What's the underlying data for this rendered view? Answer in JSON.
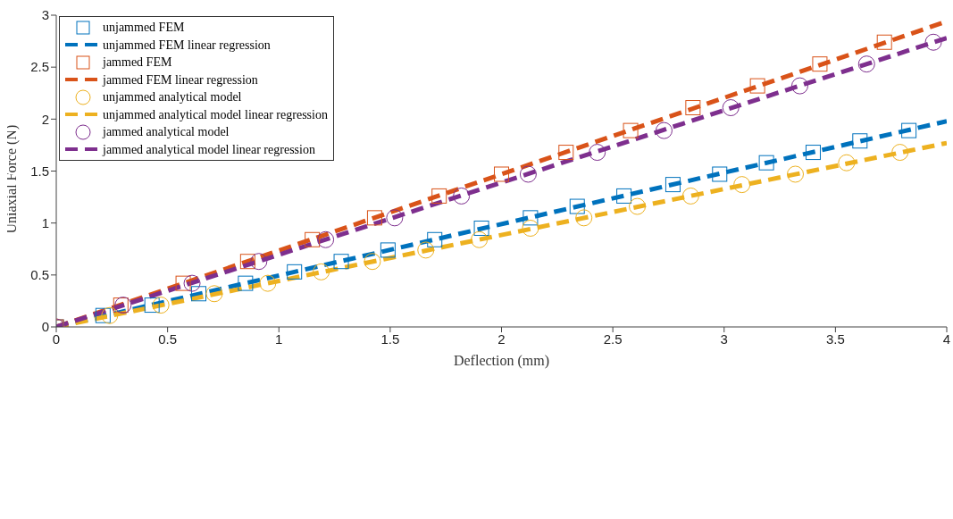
{
  "chart_data": {
    "type": "scatter",
    "xlabel": "Deflection (mm)",
    "ylabel": "Uniaxial Force (N)",
    "xlim": [
      0,
      4
    ],
    "ylim": [
      0,
      3
    ],
    "xticks": [
      0,
      0.5,
      1,
      1.5,
      2,
      2.5,
      3,
      3.5,
      4
    ],
    "yticks": [
      0,
      0.5,
      1,
      1.5,
      2,
      2.5,
      3
    ],
    "grid": false,
    "legend": "top left",
    "series": [
      {
        "name": "unjammed FEM",
        "type": "scatter",
        "marker": "square",
        "color": "#0072bd",
        "x": [
          0,
          0.21,
          0.43,
          0.64,
          0.85,
          1.07,
          1.28,
          1.49,
          1.7,
          1.91,
          2.13,
          2.34,
          2.55,
          2.77,
          2.98,
          3.19,
          3.4,
          3.61,
          3.83
        ],
        "values": [
          0,
          0.11,
          0.21,
          0.32,
          0.42,
          0.53,
          0.63,
          0.74,
          0.84,
          0.95,
          1.05,
          1.16,
          1.26,
          1.37,
          1.47,
          1.58,
          1.68,
          1.79,
          1.89
        ]
      },
      {
        "name": "unjammed FEM linear regression",
        "type": "line",
        "line_style": "dashed",
        "color": "#0072bd",
        "x": [
          0,
          4
        ],
        "values": [
          0,
          1.98
        ]
      },
      {
        "name": "jammed FEM",
        "type": "scatter",
        "marker": "square",
        "color": "#d95319",
        "x": [
          0,
          0.29,
          0.57,
          0.86,
          1.15,
          1.43,
          1.72,
          2.0,
          2.29,
          2.58,
          2.86,
          3.15,
          3.43,
          3.72
        ],
        "values": [
          0,
          0.21,
          0.42,
          0.63,
          0.84,
          1.05,
          1.26,
          1.47,
          1.68,
          1.89,
          2.11,
          2.32,
          2.53,
          2.74
        ]
      },
      {
        "name": "jammed FEM linear regression",
        "type": "line",
        "line_style": "dashed",
        "color": "#d95319",
        "x": [
          0,
          4
        ],
        "values": [
          0,
          2.94
        ]
      },
      {
        "name": "unjammed analytical model",
        "type": "scatter",
        "marker": "circle",
        "color": "#edb120",
        "x": [
          0,
          0.24,
          0.47,
          0.71,
          0.95,
          1.19,
          1.42,
          1.66,
          1.9,
          2.13,
          2.37,
          2.61,
          2.85,
          3.08,
          3.32,
          3.55,
          3.79
        ],
        "values": [
          0,
          0.11,
          0.21,
          0.32,
          0.42,
          0.53,
          0.63,
          0.74,
          0.84,
          0.95,
          1.05,
          1.16,
          1.26,
          1.37,
          1.47,
          1.58,
          1.68
        ]
      },
      {
        "name": "unjammed analytical model linear regression",
        "type": "line",
        "line_style": "dashed",
        "color": "#edb120",
        "x": [
          0,
          4
        ],
        "values": [
          0,
          1.77
        ]
      },
      {
        "name": "jammed analytical model",
        "type": "scatter",
        "marker": "circle",
        "color": "#7e2f8e",
        "x": [
          0,
          0.3,
          0.61,
          0.91,
          1.21,
          1.52,
          1.82,
          2.12,
          2.43,
          2.73,
          3.03,
          3.34,
          3.64,
          3.94
        ],
        "values": [
          0,
          0.21,
          0.42,
          0.63,
          0.84,
          1.05,
          1.26,
          1.47,
          1.68,
          1.89,
          2.11,
          2.32,
          2.53,
          2.74
        ]
      },
      {
        "name": "jammed analytical model linear regression",
        "type": "line",
        "line_style": "dashed",
        "color": "#7e2f8e",
        "x": [
          0,
          4
        ],
        "values": [
          0,
          2.78
        ]
      }
    ]
  }
}
